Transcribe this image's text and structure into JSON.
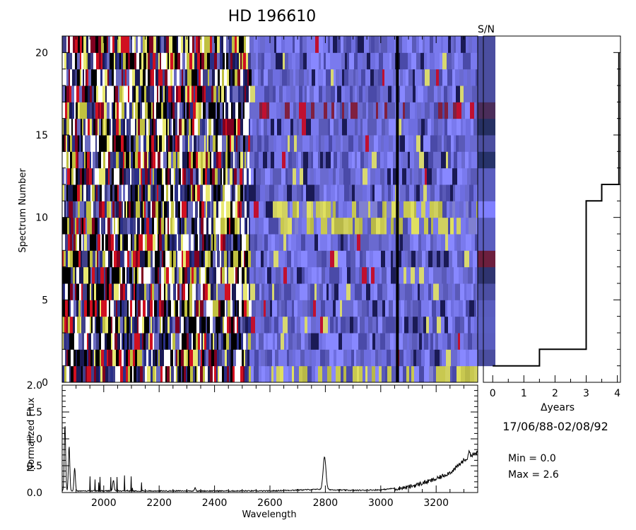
{
  "chart_data": [
    {
      "type": "heatmap",
      "title": "HD  196610",
      "xlabel": "",
      "ylabel": "Spectrum Number",
      "xlim": [
        1850,
        3350
      ],
      "ylim": [
        0,
        21
      ],
      "yticks": [
        0,
        5,
        10,
        15,
        20
      ],
      "n_spectra": 21,
      "vline_wavelength": 3060,
      "bright_rows": [
        0,
        9,
        10
      ],
      "dark_red_rows": [
        16
      ],
      "strip_label": "S/N",
      "strip_colors": [
        "#ffffff",
        "#4b4ea0",
        "#5a5dbf",
        "#5b5fc2",
        "#5a5dbf",
        "#4c4fa4",
        "#2f3470",
        "#6d1f3e",
        "#5a5dbf",
        "#5a5dbf",
        "#8080ff",
        "#5a5dbf",
        "#5a5dbf",
        "#27336b",
        "#4b4ea0",
        "#263063",
        "#4b2d5a",
        "#4b4ea0",
        "#4b4ea0",
        "#4b4ea0",
        "#4b4ea0"
      ]
    },
    {
      "type": "line",
      "xlabel": "Δyears",
      "ylabel": "",
      "xlim": [
        -0.3,
        4.1
      ],
      "ylim": [
        0,
        21
      ],
      "xticks": [
        0,
        1,
        2,
        3,
        4
      ],
      "x": [
        0,
        1.5,
        1.5,
        3.0,
        3.0,
        3.1,
        3.1,
        3.5,
        3.5,
        3.8,
        3.8,
        4.05,
        4.05
      ],
      "y": [
        1,
        1,
        2,
        2,
        11,
        11,
        11,
        11,
        12,
        12,
        12,
        12,
        20
      ]
    },
    {
      "type": "line",
      "xlabel": "Wavelength",
      "ylabel": "Normalized Flux",
      "xlim": [
        1850,
        3350
      ],
      "ylim": [
        0,
        2.0
      ],
      "xticks": [
        2000,
        2200,
        2400,
        2600,
        2800,
        3000,
        3200
      ],
      "yticks": [
        0.0,
        0.5,
        1.0,
        1.5,
        2.0
      ],
      "ytick_labels": [
        "0.0",
        "0.5",
        "1.0",
        "1.5",
        "2.0"
      ],
      "features": [
        {
          "wavelength": 1860,
          "flux": 1.25
        },
        {
          "wavelength": 1875,
          "flux": 0.85
        },
        {
          "wavelength": 1895,
          "flux": 0.45
        },
        {
          "wavelength": 2035,
          "flux": 0.22
        },
        {
          "wavelength": 2330,
          "flux": 0.08
        },
        {
          "wavelength": 2797,
          "flux": 0.66
        },
        {
          "wavelength": 3320,
          "flux": 0.8
        }
      ],
      "continuum": [
        [
          1850,
          0.02
        ],
        [
          2600,
          0.02
        ],
        [
          2780,
          0.05
        ],
        [
          2900,
          0.03
        ],
        [
          3000,
          0.04
        ],
        [
          3100,
          0.1
        ],
        [
          3200,
          0.25
        ],
        [
          3260,
          0.4
        ],
        [
          3300,
          0.6
        ],
        [
          3350,
          0.75
        ]
      ]
    }
  ],
  "info": {
    "date_range": "17/06/88-02/08/92",
    "min_label": "Min =  0.0",
    "max_label": "Max =  2.6"
  }
}
